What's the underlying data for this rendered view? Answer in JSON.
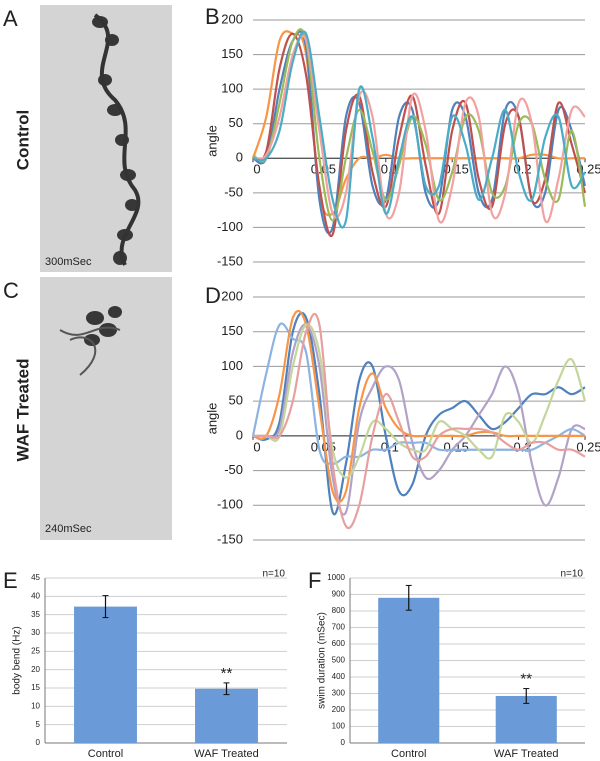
{
  "figure": {
    "photos": [
      {
        "label": "A",
        "condition": "Control",
        "duration": "300mSec"
      },
      {
        "label": "C",
        "condition": "WAF Treated",
        "duration": "240mSec"
      }
    ]
  },
  "chart_data": [
    {
      "type": "line",
      "label": "B",
      "y_label": "angle",
      "x": [
        0,
        0.01,
        0.02,
        0.03,
        0.04,
        0.05,
        0.06,
        0.07,
        0.08,
        0.09,
        0.1,
        0.11,
        0.12,
        0.13,
        0.14,
        0.15,
        0.16,
        0.17,
        0.18,
        0.19,
        0.2,
        0.21,
        0.22,
        0.23,
        0.24,
        0.25
      ],
      "xlim": [
        0,
        0.25
      ],
      "xticks": [
        0,
        0.05,
        0.1,
        0.15,
        0.2,
        0.25
      ],
      "ylim": [
        -150,
        200
      ],
      "yticks": [
        -150,
        -100,
        -50,
        0,
        50,
        100,
        150,
        200
      ],
      "grid": true,
      "series": [
        {
          "color": "#f79646",
          "values": [
            0,
            60,
            170,
            180,
            150,
            -50,
            -80,
            -30,
            0,
            0,
            5,
            0,
            0,
            0,
            0,
            0,
            0,
            0,
            0,
            0,
            0,
            5,
            5,
            0,
            0,
            0
          ]
        },
        {
          "color": "#4f81bd",
          "values": [
            0,
            0,
            100,
            170,
            160,
            -60,
            -100,
            60,
            80,
            -40,
            -60,
            60,
            70,
            -50,
            -60,
            70,
            60,
            -50,
            -60,
            70,
            60,
            -60,
            -50,
            70,
            40,
            -40
          ]
        },
        {
          "color": "#c0504d",
          "values": [
            0,
            10,
            130,
            180,
            120,
            -40,
            -110,
            40,
            90,
            -20,
            -70,
            30,
            90,
            -10,
            -80,
            40,
            80,
            -30,
            -70,
            50,
            60,
            -60,
            -30,
            80,
            20,
            -50
          ]
        },
        {
          "color": "#9bbb59",
          "values": [
            5,
            0,
            80,
            170,
            170,
            0,
            -90,
            0,
            70,
            10,
            -60,
            -10,
            60,
            20,
            -60,
            -20,
            60,
            40,
            -50,
            -40,
            50,
            50,
            -30,
            -60,
            40,
            -70
          ]
        },
        {
          "color": "#f2a1a1",
          "values": [
            0,
            5,
            60,
            150,
            170,
            40,
            -80,
            -50,
            90,
            60,
            -80,
            -50,
            90,
            40,
            -90,
            -40,
            80,
            60,
            -80,
            -50,
            80,
            50,
            -90,
            -30,
            70,
            60
          ]
        },
        {
          "color": "#4bacc6",
          "values": [
            0,
            0,
            40,
            140,
            180,
            60,
            -60,
            -90,
            100,
            30,
            -80,
            0,
            60,
            -40,
            -40,
            60,
            20,
            -60,
            0,
            70,
            -20,
            -60,
            30,
            60,
            -40,
            -20
          ]
        }
      ]
    },
    {
      "type": "line",
      "label": "D",
      "y_label": "angle",
      "x": [
        0,
        0.01,
        0.02,
        0.03,
        0.04,
        0.05,
        0.06,
        0.07,
        0.08,
        0.09,
        0.1,
        0.11,
        0.12,
        0.13,
        0.14,
        0.15,
        0.16,
        0.17,
        0.18,
        0.19,
        0.2,
        0.21,
        0.22,
        0.23,
        0.24,
        0.25
      ],
      "xlim": [
        0,
        0.25
      ],
      "xticks": [
        0,
        0.05,
        0.1,
        0.15,
        0.2,
        0.25
      ],
      "ylim": [
        -150,
        200
      ],
      "yticks": [
        -150,
        -100,
        -50,
        0,
        50,
        100,
        150,
        200
      ],
      "grid": true,
      "series": [
        {
          "color": "#4f81bd",
          "values": [
            0,
            -5,
            20,
            150,
            170,
            60,
            -110,
            -40,
            80,
            100,
            0,
            -80,
            -70,
            0,
            30,
            40,
            50,
            30,
            10,
            20,
            40,
            60,
            60,
            70,
            60,
            70
          ]
        },
        {
          "color": "#b3a2c7",
          "values": [
            0,
            0,
            10,
            120,
            160,
            100,
            -60,
            -110,
            20,
            70,
            100,
            80,
            -10,
            -60,
            -50,
            -20,
            0,
            30,
            60,
            100,
            60,
            -40,
            -100,
            -60,
            10,
            10
          ]
        },
        {
          "color": "#8db3e2",
          "values": [
            0,
            90,
            160,
            140,
            120,
            -20,
            -40,
            -30,
            -30,
            -20,
            -20,
            -10,
            -10,
            -10,
            -20,
            -20,
            -20,
            -20,
            -20,
            -20,
            -20,
            -20,
            -10,
            0,
            10,
            0
          ]
        },
        {
          "color": "#f79646",
          "values": [
            0,
            0,
            60,
            170,
            160,
            40,
            -80,
            -80,
            40,
            90,
            40,
            10,
            0,
            0,
            0,
            0,
            0,
            5,
            5,
            0,
            0,
            0,
            0,
            0,
            0,
            0
          ]
        },
        {
          "color": "#c3d69b",
          "values": [
            0,
            0,
            0,
            100,
            160,
            120,
            -20,
            -60,
            -30,
            20,
            10,
            -10,
            -20,
            -20,
            20,
            10,
            0,
            -20,
            -30,
            30,
            20,
            -10,
            30,
            80,
            110,
            50
          ]
        },
        {
          "color": "#e6a0a0",
          "values": [
            0,
            0,
            0,
            50,
            150,
            160,
            -40,
            -130,
            -100,
            0,
            60,
            20,
            -30,
            -30,
            0,
            10,
            10,
            10,
            5,
            -10,
            -20,
            -10,
            -10,
            -20,
            -20,
            -30
          ]
        }
      ]
    },
    {
      "type": "bar",
      "label": "E",
      "y_label": "body bend (Hz)",
      "note": "n=10",
      "categories": [
        "Control",
        "WAF Treated"
      ],
      "values": [
        37.2,
        14.8
      ],
      "errors": [
        3,
        1.6
      ],
      "significance": [
        null,
        "**"
      ],
      "color": "#6a9bd8",
      "ylim": [
        0,
        45
      ],
      "yticks": [
        0,
        5,
        10,
        15,
        20,
        25,
        30,
        35,
        40,
        45
      ],
      "grid": true
    },
    {
      "type": "bar",
      "label": "F",
      "y_label": "swim duration (mSec)",
      "note": "n=10",
      "categories": [
        "Control",
        "WAF Treated"
      ],
      "values": [
        880,
        285
      ],
      "errors": [
        75,
        45
      ],
      "significance": [
        null,
        "**"
      ],
      "color": "#6a9bd8",
      "ylim": [
        0,
        1000
      ],
      "yticks": [
        0,
        100,
        200,
        300,
        400,
        500,
        600,
        700,
        800,
        900,
        1000
      ],
      "grid": true
    }
  ]
}
